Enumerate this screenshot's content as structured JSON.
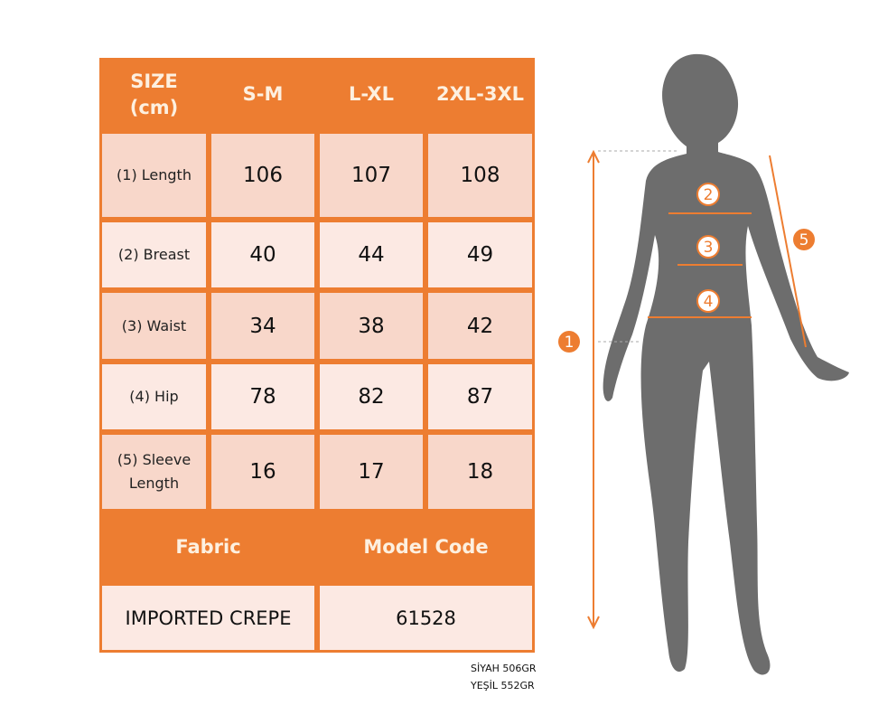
{
  "table": {
    "header": [
      "SIZE\n(cm)",
      "S-M",
      "L-XL",
      "2XL-3XL"
    ],
    "rows": [
      {
        "label": "(1) Length",
        "values": [
          "106",
          "107",
          "108"
        ]
      },
      {
        "label": "(2) Breast",
        "values": [
          "40",
          "44",
          "49"
        ]
      },
      {
        "label": "(3) Waist",
        "values": [
          "34",
          "38",
          "42"
        ]
      },
      {
        "label": "(4) Hip",
        "values": [
          "78",
          "82",
          "87"
        ]
      },
      {
        "label": "(5) Sleeve Length",
        "values": [
          "16",
          "17",
          "18"
        ]
      }
    ],
    "footer_headers": [
      "Fabric",
      "Model Code"
    ],
    "footer_values": [
      "IMPORTED CREPE",
      "61528"
    ]
  },
  "notes": [
    "SİYAH 506GR",
    "YEŞİL 552GR"
  ],
  "figure": {
    "markers": [
      "1",
      "2",
      "3",
      "4",
      "5"
    ]
  },
  "colors": {
    "accent": "#ED7D31",
    "row_dark": "#f8d7ca",
    "row_light": "#fce9e3",
    "silhouette": "#6d6d6d"
  }
}
